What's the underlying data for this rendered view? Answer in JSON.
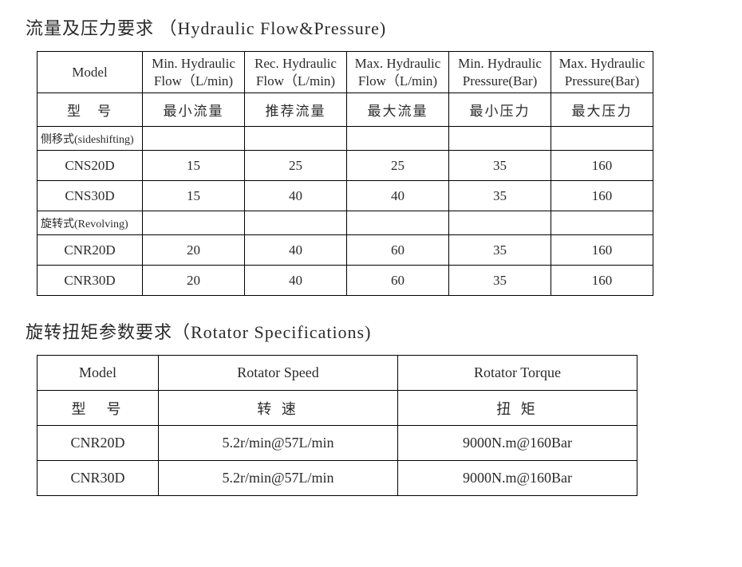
{
  "section1": {
    "title": "流量及压力要求 （Hydraulic Flow&Pressure)",
    "headers_en": {
      "model": "Model",
      "min_flow": "Min. Hydraulic Flow（L/min)",
      "rec_flow": "Rec. Hydraulic Flow（L/min)",
      "max_flow": "Max. Hydraulic Flow（L/min)",
      "min_press": "Min. Hydraulic Pressure(Bar)",
      "max_press": "Max. Hydraulic Pressure(Bar)"
    },
    "headers_cn": {
      "model": "型　号",
      "min_flow": "最小流量",
      "rec_flow": "推荐流量",
      "max_flow": "最大流量",
      "min_press": "最小压力",
      "max_press": "最大压力"
    },
    "group1_label": "侧移式(sideshifting)",
    "group1_rows": [
      {
        "model": "CNS20D",
        "min_flow": "15",
        "rec_flow": "25",
        "max_flow": "25",
        "min_press": "35",
        "max_press": "160"
      },
      {
        "model": "CNS30D",
        "min_flow": "15",
        "rec_flow": "40",
        "max_flow": "40",
        "min_press": "35",
        "max_press": "160"
      }
    ],
    "group2_label": "旋转式(Revolving)",
    "group2_rows": [
      {
        "model": "CNR20D",
        "min_flow": "20",
        "rec_flow": "40",
        "max_flow": "60",
        "min_press": "35",
        "max_press": "160"
      },
      {
        "model": "CNR30D",
        "min_flow": "20",
        "rec_flow": "40",
        "max_flow": "60",
        "min_press": "35",
        "max_press": "160"
      }
    ]
  },
  "section2": {
    "title": "旋转扭矩参数要求（Rotator Specifications)",
    "headers_en": {
      "model": "Model",
      "speed": "Rotator Speed",
      "torque": "Rotator Torque"
    },
    "headers_cn": {
      "model": "型　号",
      "speed": "转 速",
      "torque": "扭 矩"
    },
    "rows": [
      {
        "model": "CNR20D",
        "speed": "5.2r/min@57L/min",
        "torque": "9000N.m@160Bar"
      },
      {
        "model": "CNR30D",
        "speed": "5.2r/min@57L/min",
        "torque": "9000N.m@160Bar"
      }
    ]
  }
}
